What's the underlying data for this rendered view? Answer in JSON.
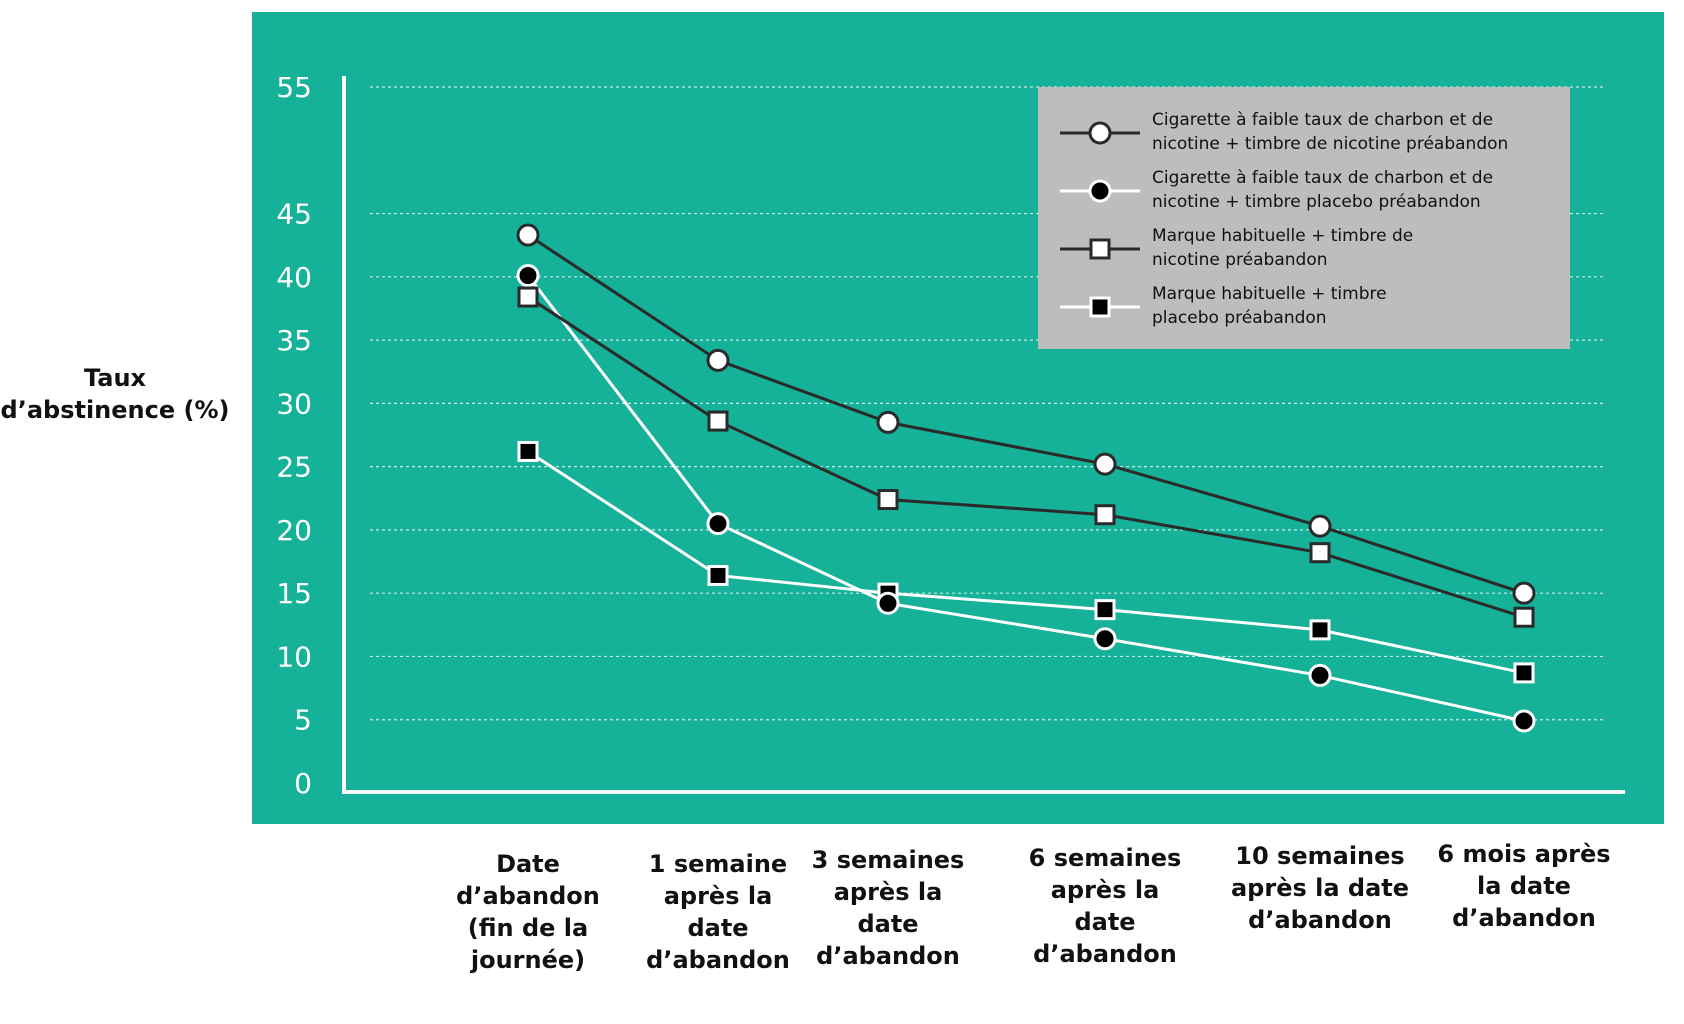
{
  "chart_data": {
    "type": "line",
    "ylabel": "Taux d’abstinence (%)",
    "ylabel_lines": [
      "Taux",
      "d’abstinence (%)"
    ],
    "yticks": [
      0,
      5,
      10,
      15,
      20,
      25,
      30,
      35,
      40,
      45,
      55
    ],
    "ylim": [
      0,
      55
    ],
    "grid": true,
    "legend_position": "top-right",
    "categories": [
      "Date d’abandon (fin de la journée)",
      "1 semaine après la date d’abandon",
      "3 semaines après la date d’abandon",
      "6 semaines après la date d’abandon",
      "10 semaines après la date d’abandon",
      "6 mois après la date d’abandon"
    ],
    "category_lines": [
      [
        "Date",
        "d’abandon",
        "(fin de la",
        "journée)"
      ],
      [
        "1 semaine",
        "après la",
        "date",
        "d’abandon"
      ],
      [
        "3 semaines",
        "après la",
        "date",
        "d’abandon"
      ],
      [
        "6 semaines",
        "après la",
        "date",
        "d’abandon"
      ],
      [
        "10 semaines",
        "après la date",
        "d’abandon"
      ],
      [
        "6 mois après",
        "la date",
        "d’abandon"
      ]
    ],
    "series": [
      {
        "name": "Cigarette à faible taux de charbon et de nicotine + timbre de nicotine préabandon",
        "legend_lines": [
          "Cigarette à faible taux de charbon et de",
          "nicotine + timbre de nicotine préabandon"
        ],
        "marker": "circle-open",
        "line_color": "#2a2a2a",
        "values": [
          43.3,
          33.4,
          28.5,
          25.2,
          20.3,
          15.0
        ]
      },
      {
        "name": "Cigarette à faible taux de charbon et de nicotine + timbre placebo préabandon",
        "legend_lines": [
          "Cigarette à faible taux de charbon et de",
          "nicotine + timbre placebo préabandon"
        ],
        "marker": "circle-filled",
        "line_color": "#ffffff",
        "values": [
          40.1,
          20.5,
          14.2,
          11.4,
          8.5,
          4.9
        ]
      },
      {
        "name": "Marque habituelle + timbre de nicotine préabandon",
        "legend_lines": [
          "Marque habituelle + timbre de",
          "nicotine préabandon"
        ],
        "marker": "square-open",
        "line_color": "#2a2a2a",
        "values": [
          38.4,
          28.6,
          22.4,
          21.2,
          18.2,
          13.1
        ]
      },
      {
        "name": "Marque habituelle + timbre placebo préabandon",
        "legend_lines": [
          "Marque habituelle + timbre",
          "placebo préabandon"
        ],
        "marker": "square-filled",
        "line_color": "#ffffff",
        "values": [
          26.2,
          16.4,
          15.0,
          13.7,
          12.1,
          8.7
        ]
      }
    ],
    "colors": {
      "panel": "#15b199",
      "legend_bg": "#bdbdbd",
      "dark_line": "#2a2a2a",
      "light_line": "#ffffff",
      "marker_fill_open": "#ffffff",
      "marker_fill_dark": "#000000",
      "grid": "#c6ece5",
      "tick_text": "#ffffff",
      "axis": "#ffffff",
      "label_text": "#111111"
    }
  }
}
